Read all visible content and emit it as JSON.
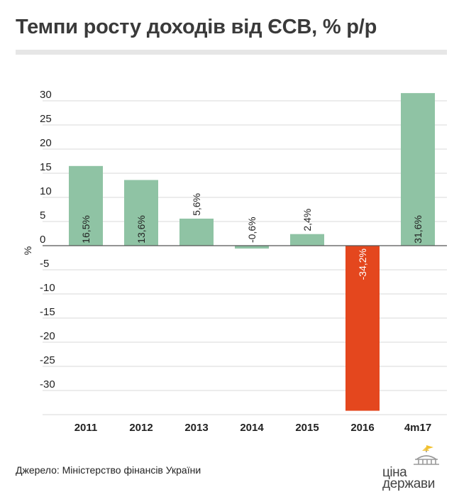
{
  "header": {
    "title": "Темпи росту доходів від ЄСВ, % р/р"
  },
  "footer": {
    "source": "Джерело: Міністерство фінансів України"
  },
  "logo": {
    "line1": "ціна",
    "line2": "держави",
    "icon": "parliament-building-icon"
  },
  "colors": {
    "positive": "#8fc3a4",
    "negative": "#e4471e",
    "grid": "#d9d9d9",
    "zero_line": "#555555"
  },
  "chart_data": {
    "type": "bar",
    "title": "Темпи росту доходів від ЄСВ, % р/р",
    "xlabel": "",
    "ylabel": "%",
    "categories": [
      "2011",
      "2012",
      "2013",
      "2014",
      "2015",
      "2016",
      "4m17"
    ],
    "values": [
      16.5,
      13.6,
      5.6,
      -0.6,
      2.4,
      -34.2,
      31.6
    ],
    "data_labels": [
      "16,5%",
      "13,6%",
      "5,6%",
      "-0,6%",
      "2,4%",
      "-34,2%",
      "31,6%"
    ],
    "yticks": [
      "30",
      "25",
      "20",
      "15",
      "10",
      "5",
      "0",
      "-5",
      "-10",
      "-15",
      "-20",
      "-25",
      "-30"
    ],
    "ytick_values": [
      30,
      25,
      20,
      15,
      10,
      5,
      0,
      -5,
      -10,
      -15,
      -20,
      -25,
      -30
    ],
    "ylim": [
      -35,
      32
    ],
    "grid": true,
    "legend": "none"
  }
}
